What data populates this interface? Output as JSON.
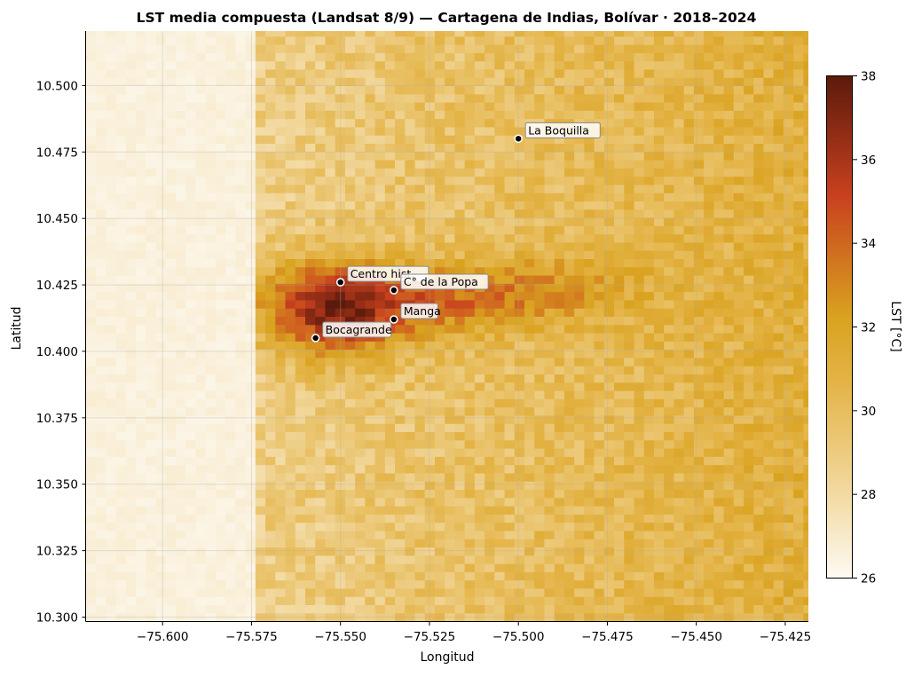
{
  "chart_data": {
    "type": "heatmap",
    "title": "LST media compuesta (Landsat 8/9) — Cartagena de Indias, Bolívar · 2018–2024",
    "xlabel": "Longitud",
    "ylabel": "Latitud",
    "xlim": [
      -75.6215,
      -75.4185
    ],
    "ylim": [
      10.2985,
      10.5205
    ],
    "x_ticks": [
      -75.6,
      -75.575,
      -75.55,
      -75.525,
      -75.5,
      -75.475,
      -75.45,
      -75.425
    ],
    "x_tick_labels": [
      "−75.600",
      "−75.575",
      "−75.550",
      "−75.525",
      "−75.500",
      "−75.475",
      "−75.450",
      "−75.425"
    ],
    "y_ticks": [
      10.3,
      10.325,
      10.35,
      10.375,
      10.4,
      10.425,
      10.45,
      10.475,
      10.5
    ],
    "y_tick_labels": [
      "10.300",
      "10.325",
      "10.350",
      "10.375",
      "10.400",
      "10.425",
      "10.450",
      "10.475",
      "10.500"
    ],
    "grid": true,
    "sea_boundary_lon": -75.575,
    "sea_value_c": 26.3,
    "land_base_west_c": 28.8,
    "land_base_east_c": 31.2,
    "hotspots": [
      {
        "lon": -75.553,
        "lat": 10.416,
        "peak_c": 36.4
      },
      {
        "lon": -75.527,
        "lat": 10.418,
        "peak_c": 33.0
      },
      {
        "lon": -75.495,
        "lat": 10.424,
        "peak_c": 32.6
      }
    ],
    "colorbar": {
      "label": "LST [°C]",
      "min": 26,
      "max": 38,
      "ticks": [
        "26",
        "28",
        "30",
        "32",
        "34",
        "36",
        "38"
      ],
      "colors": [
        "#fdfaf3",
        "#f3dba5",
        "#e4b54a",
        "#d9a21f",
        "#c9411f",
        "#5c1a0c"
      ]
    },
    "annotations": [
      {
        "label": "La Boquilla",
        "lon": -75.5,
        "lat": 10.48
      },
      {
        "label": "Centro hist.",
        "lon": -75.55,
        "lat": 10.426
      },
      {
        "label": "C° de la Popa",
        "lon": -75.535,
        "lat": 10.423
      },
      {
        "label": "Manga",
        "lon": -75.535,
        "lat": 10.412
      },
      {
        "label": "Bocagrande",
        "lon": -75.557,
        "lat": 10.405
      }
    ]
  }
}
